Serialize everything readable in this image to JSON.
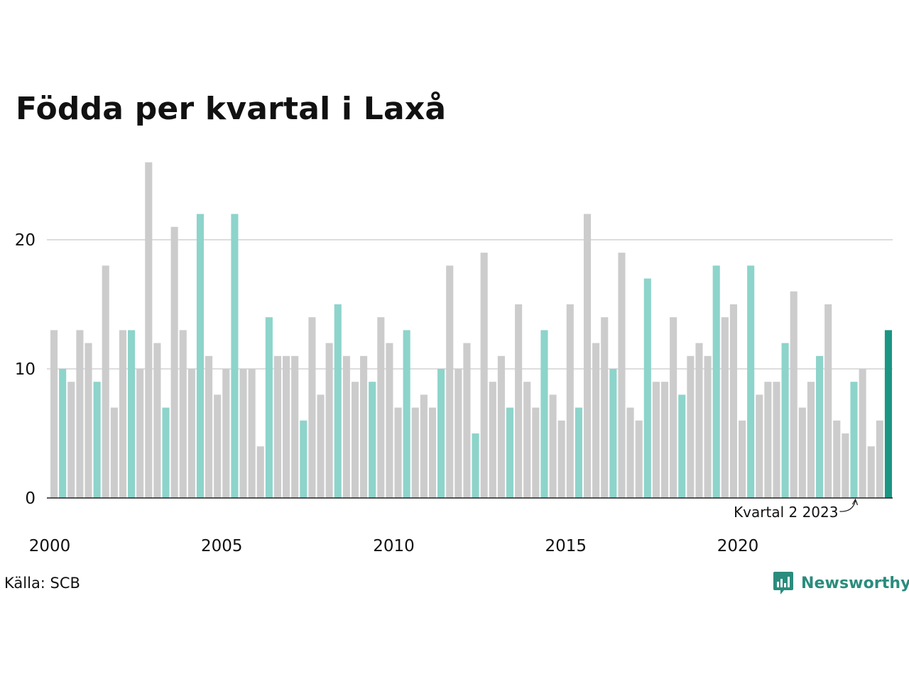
{
  "chart_data": {
    "type": "bar",
    "title": "Födda per kvartal i Laxå",
    "ylim": [
      0,
      26
    ],
    "y_ticks": [
      0,
      10,
      20
    ],
    "x_tick_labels": [
      "2000",
      "2005",
      "2010",
      "2015",
      "2020"
    ],
    "grid": true,
    "legend": "none",
    "categories": [
      "2000 K1",
      "2000 K2",
      "2000 K3",
      "2000 K4",
      "2001 K1",
      "2001 K2",
      "2001 K3",
      "2001 K4",
      "2002 K1",
      "2002 K2",
      "2002 K3",
      "2002 K4",
      "2003 K1",
      "2003 K2",
      "2003 K3",
      "2003 K4",
      "2004 K1",
      "2004 K2",
      "2004 K3",
      "2004 K4",
      "2005 K1",
      "2005 K2",
      "2005 K3",
      "2005 K4",
      "2006 K1",
      "2006 K2",
      "2006 K3",
      "2006 K4",
      "2007 K1",
      "2007 K2",
      "2007 K3",
      "2007 K4",
      "2008 K1",
      "2008 K2",
      "2008 K3",
      "2008 K4",
      "2009 K1",
      "2009 K2",
      "2009 K3",
      "2009 K4",
      "2010 K1",
      "2010 K2",
      "2010 K3",
      "2010 K4",
      "2011 K1",
      "2011 K2",
      "2011 K3",
      "2011 K4",
      "2012 K1",
      "2012 K2",
      "2012 K3",
      "2012 K4",
      "2013 K1",
      "2013 K2",
      "2013 K3",
      "2013 K4",
      "2014 K1",
      "2014 K2",
      "2014 K3",
      "2014 K4",
      "2015 K1",
      "2015 K2",
      "2015 K3",
      "2015 K4",
      "2016 K1",
      "2016 K2",
      "2016 K3",
      "2016 K4",
      "2017 K1",
      "2017 K2",
      "2017 K3",
      "2017 K4",
      "2018 K1",
      "2018 K2",
      "2018 K3",
      "2018 K4",
      "2019 K1",
      "2019 K2",
      "2019 K3",
      "2019 K4",
      "2020 K1",
      "2020 K2",
      "2020 K3",
      "2020 K4",
      "2021 K1",
      "2021 K2",
      "2021 K3",
      "2021 K4",
      "2022 K1",
      "2022 K2",
      "2022 K3",
      "2022 K4",
      "2023 K1",
      "2023 K2",
      "2023 K3",
      "2023 K4",
      "2024 K1",
      "2024 K2"
    ],
    "values": [
      13,
      10,
      9,
      13,
      12,
      9,
      18,
      7,
      13,
      13,
      10,
      26,
      12,
      7,
      21,
      13,
      10,
      22,
      11,
      8,
      10,
      22,
      10,
      10,
      4,
      14,
      11,
      11,
      11,
      6,
      14,
      8,
      12,
      15,
      11,
      9,
      11,
      9,
      14,
      12,
      7,
      13,
      7,
      8,
      7,
      10,
      18,
      10,
      12,
      5,
      19,
      9,
      11,
      7,
      15,
      9,
      7,
      13,
      8,
      6,
      15,
      7,
      22,
      12,
      14,
      10,
      19,
      7,
      6,
      17,
      9,
      9,
      14,
      8,
      11,
      12,
      11,
      18,
      14,
      15,
      6,
      18,
      8,
      9,
      9,
      12,
      16,
      7,
      9,
      11,
      15,
      6,
      5,
      9,
      10,
      4,
      6,
      13
    ],
    "highlight_quarter": 2,
    "colors": {
      "other": "#cccccc",
      "highlight": "#8dd4cb",
      "latest": "#1a9683",
      "grid": "#dddddd",
      "axis": "#222222"
    },
    "annotation": "Kvartal 2 2023",
    "annotation_target": "2023 K2"
  },
  "source": "Källa: SCB",
  "brand": {
    "name": "Newsworthy",
    "color": "#2a8c7d",
    "icon": "bar-chart-icon"
  }
}
